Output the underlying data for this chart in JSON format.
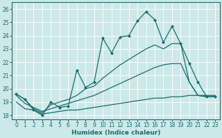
{
  "xlabel": "Humidex (Indice chaleur)",
  "bg_color": "#cce8e8",
  "grid_color": "#b8d8d8",
  "line_color": "#1a6b6b",
  "xlim": [
    -0.5,
    23.5
  ],
  "ylim": [
    17.7,
    26.5
  ],
  "yticks": [
    18,
    19,
    20,
    21,
    22,
    23,
    24,
    25,
    26
  ],
  "xticks": [
    0,
    1,
    2,
    3,
    4,
    5,
    6,
    7,
    8,
    9,
    10,
    11,
    12,
    13,
    14,
    15,
    16,
    17,
    18,
    19,
    20,
    21,
    22,
    23
  ],
  "series": [
    {
      "x": [
        0,
        1,
        2,
        3,
        4,
        5,
        6,
        7,
        8,
        9,
        10,
        11,
        12,
        13,
        14,
        15,
        16,
        17,
        18,
        19,
        20,
        21,
        22,
        23
      ],
      "y": [
        19.0,
        18.5,
        18.4,
        18.1,
        18.2,
        18.3,
        18.4,
        18.4,
        18.5,
        18.6,
        18.7,
        18.8,
        18.9,
        19.0,
        19.1,
        19.2,
        19.3,
        19.3,
        19.4,
        19.4,
        19.5,
        19.5,
        19.5,
        19.5
      ],
      "markers": false
    },
    {
      "x": [
        0,
        1,
        2,
        3,
        4,
        5,
        6,
        7,
        8,
        9,
        10,
        11,
        12,
        13,
        14,
        15,
        16,
        17,
        18,
        19,
        20,
        21,
        22,
        23
      ],
      "y": [
        19.5,
        18.9,
        18.6,
        18.3,
        18.5,
        18.7,
        18.9,
        19.1,
        19.3,
        19.5,
        19.8,
        20.1,
        20.4,
        20.7,
        21.0,
        21.3,
        21.6,
        21.8,
        21.9,
        21.9,
        20.5,
        19.5,
        19.4,
        19.4
      ],
      "markers": false
    },
    {
      "x": [
        0,
        1,
        2,
        3,
        4,
        5,
        6,
        7,
        8,
        9,
        10,
        11,
        12,
        13,
        14,
        15,
        16,
        17,
        18,
        19,
        20,
        21,
        22,
        23
      ],
      "y": [
        19.6,
        19.2,
        18.5,
        18.2,
        18.8,
        19.0,
        19.2,
        19.5,
        20.0,
        20.2,
        20.8,
        21.3,
        21.8,
        22.2,
        22.6,
        23.0,
        23.3,
        23.0,
        23.4,
        23.4,
        20.5,
        19.5,
        19.4,
        19.4
      ],
      "markers": false
    },
    {
      "x": [
        0,
        1,
        2,
        3,
        4,
        5,
        6,
        7,
        8,
        9,
        10,
        11,
        12,
        13,
        14,
        15,
        16,
        17,
        18,
        19,
        20,
        21,
        22,
        23
      ],
      "y": [
        19.6,
        19.2,
        18.4,
        18.0,
        19.0,
        18.6,
        18.7,
        21.4,
        20.1,
        20.5,
        23.8,
        22.7,
        23.9,
        24.0,
        25.1,
        25.8,
        25.2,
        23.5,
        24.7,
        23.4,
        21.9,
        20.5,
        19.4,
        19.4
      ],
      "markers": true
    }
  ]
}
